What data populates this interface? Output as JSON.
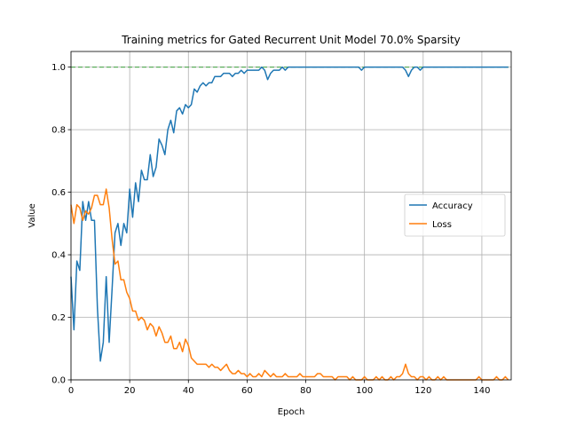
{
  "chart_data": {
    "type": "line",
    "title": "Training metrics for Gated Recurrent Unit Model 70.0% Sparsity",
    "xlabel": "Epoch",
    "ylabel": "Value",
    "xlim": [
      0,
      150
    ],
    "ylim": [
      0,
      1.05
    ],
    "xticks": [
      0,
      20,
      40,
      60,
      80,
      100,
      120,
      140
    ],
    "yticks": [
      0.0,
      0.2,
      0.4,
      0.6,
      0.8,
      1.0
    ],
    "grid": true,
    "legend_position": "center-right",
    "reference_line": {
      "y": 1.0,
      "color": "#2ca02c",
      "style": "dashed"
    },
    "series": [
      {
        "name": "Accuracy",
        "color": "#1f77b4",
        "x": [
          0,
          1,
          2,
          3,
          4,
          5,
          6,
          7,
          8,
          9,
          10,
          11,
          12,
          13,
          14,
          15,
          16,
          17,
          18,
          19,
          20,
          21,
          22,
          23,
          24,
          25,
          26,
          27,
          28,
          29,
          30,
          31,
          32,
          33,
          34,
          35,
          36,
          37,
          38,
          39,
          40,
          41,
          42,
          43,
          44,
          45,
          46,
          47,
          48,
          49,
          50,
          51,
          52,
          53,
          54,
          55,
          56,
          57,
          58,
          59,
          60,
          61,
          62,
          63,
          64,
          65,
          66,
          67,
          68,
          69,
          70,
          71,
          72,
          73,
          74,
          75,
          76,
          77,
          78,
          79,
          80,
          81,
          82,
          83,
          84,
          85,
          86,
          87,
          88,
          89,
          90,
          91,
          92,
          93,
          94,
          95,
          96,
          97,
          98,
          99,
          100,
          101,
          102,
          103,
          104,
          105,
          106,
          107,
          108,
          109,
          110,
          111,
          112,
          113,
          114,
          115,
          116,
          117,
          118,
          119,
          120,
          121,
          122,
          123,
          124,
          125,
          126,
          127,
          128,
          129,
          130,
          131,
          132,
          133,
          134,
          135,
          136,
          137,
          138,
          139,
          140,
          141,
          142,
          143,
          144,
          145,
          146,
          147,
          148,
          149
        ],
        "y": [
          0.33,
          0.16,
          0.38,
          0.35,
          0.57,
          0.51,
          0.57,
          0.51,
          0.51,
          0.23,
          0.06,
          0.12,
          0.33,
          0.12,
          0.29,
          0.47,
          0.5,
          0.43,
          0.5,
          0.47,
          0.61,
          0.52,
          0.63,
          0.57,
          0.67,
          0.64,
          0.64,
          0.72,
          0.65,
          0.68,
          0.77,
          0.75,
          0.72,
          0.8,
          0.83,
          0.79,
          0.86,
          0.87,
          0.85,
          0.88,
          0.87,
          0.88,
          0.93,
          0.92,
          0.94,
          0.95,
          0.94,
          0.95,
          0.95,
          0.97,
          0.97,
          0.97,
          0.98,
          0.98,
          0.98,
          0.97,
          0.98,
          0.98,
          0.99,
          0.98,
          0.99,
          0.99,
          0.99,
          0.99,
          0.99,
          1.0,
          0.99,
          0.96,
          0.98,
          0.99,
          0.99,
          0.99,
          1.0,
          0.99,
          1.0,
          1.0,
          1.0,
          1.0,
          1.0,
          1.0,
          1.0,
          1.0,
          1.0,
          1.0,
          1.0,
          1.0,
          1.0,
          1.0,
          1.0,
          1.0,
          1.0,
          1.0,
          1.0,
          1.0,
          1.0,
          1.0,
          1.0,
          1.0,
          1.0,
          0.99,
          1.0,
          1.0,
          1.0,
          1.0,
          1.0,
          1.0,
          1.0,
          1.0,
          1.0,
          1.0,
          1.0,
          1.0,
          1.0,
          1.0,
          0.99,
          0.97,
          0.99,
          1.0,
          1.0,
          0.99,
          1.0,
          1.0,
          1.0,
          1.0,
          1.0,
          1.0,
          1.0,
          1.0,
          1.0,
          1.0,
          1.0,
          1.0,
          1.0,
          1.0,
          1.0,
          1.0,
          1.0,
          1.0,
          1.0,
          1.0,
          1.0,
          1.0,
          1.0,
          1.0,
          1.0,
          1.0,
          1.0,
          1.0,
          1.0,
          1.0
        ]
      },
      {
        "name": "Loss",
        "color": "#ff7f0e",
        "x": [
          0,
          1,
          2,
          3,
          4,
          5,
          6,
          7,
          8,
          9,
          10,
          11,
          12,
          13,
          14,
          15,
          16,
          17,
          18,
          19,
          20,
          21,
          22,
          23,
          24,
          25,
          26,
          27,
          28,
          29,
          30,
          31,
          32,
          33,
          34,
          35,
          36,
          37,
          38,
          39,
          40,
          41,
          42,
          43,
          44,
          45,
          46,
          47,
          48,
          49,
          50,
          51,
          52,
          53,
          54,
          55,
          56,
          57,
          58,
          59,
          60,
          61,
          62,
          63,
          64,
          65,
          66,
          67,
          68,
          69,
          70,
          71,
          72,
          73,
          74,
          75,
          76,
          77,
          78,
          79,
          80,
          81,
          82,
          83,
          84,
          85,
          86,
          87,
          88,
          89,
          90,
          91,
          92,
          93,
          94,
          95,
          96,
          97,
          98,
          99,
          100,
          101,
          102,
          103,
          104,
          105,
          106,
          107,
          108,
          109,
          110,
          111,
          112,
          113,
          114,
          115,
          116,
          117,
          118,
          119,
          120,
          121,
          122,
          123,
          124,
          125,
          126,
          127,
          128,
          129,
          130,
          131,
          132,
          133,
          134,
          135,
          136,
          137,
          138,
          139,
          140,
          141,
          142,
          143,
          144,
          145,
          146,
          147,
          148,
          149
        ],
        "y": [
          0.56,
          0.5,
          0.56,
          0.55,
          0.51,
          0.54,
          0.53,
          0.55,
          0.59,
          0.59,
          0.56,
          0.56,
          0.61,
          0.55,
          0.45,
          0.37,
          0.38,
          0.32,
          0.32,
          0.28,
          0.26,
          0.22,
          0.22,
          0.19,
          0.2,
          0.19,
          0.16,
          0.18,
          0.17,
          0.14,
          0.17,
          0.15,
          0.12,
          0.12,
          0.14,
          0.1,
          0.1,
          0.12,
          0.09,
          0.13,
          0.11,
          0.07,
          0.06,
          0.05,
          0.05,
          0.05,
          0.05,
          0.04,
          0.05,
          0.04,
          0.04,
          0.03,
          0.04,
          0.05,
          0.03,
          0.02,
          0.02,
          0.03,
          0.02,
          0.02,
          0.01,
          0.02,
          0.01,
          0.01,
          0.02,
          0.01,
          0.03,
          0.02,
          0.01,
          0.02,
          0.01,
          0.01,
          0.01,
          0.02,
          0.01,
          0.01,
          0.01,
          0.01,
          0.02,
          0.01,
          0.01,
          0.01,
          0.01,
          0.01,
          0.02,
          0.02,
          0.01,
          0.01,
          0.01,
          0.01,
          0.0,
          0.01,
          0.01,
          0.01,
          0.01,
          0.0,
          0.01,
          0.0,
          0.0,
          0.0,
          0.01,
          0.0,
          0.0,
          0.0,
          0.01,
          0.0,
          0.01,
          0.0,
          0.0,
          0.01,
          0.0,
          0.01,
          0.01,
          0.02,
          0.05,
          0.02,
          0.01,
          0.01,
          0.0,
          0.01,
          0.01,
          0.0,
          0.01,
          0.0,
          0.0,
          0.01,
          0.0,
          0.01,
          0.0,
          0.0,
          0.0,
          0.0,
          0.0,
          0.0,
          0.0,
          0.0,
          0.0,
          0.0,
          0.0,
          0.01,
          0.0,
          0.0,
          0.0,
          0.0,
          0.0,
          0.01,
          0.0,
          0.0,
          0.01,
          0.0
        ]
      }
    ]
  }
}
